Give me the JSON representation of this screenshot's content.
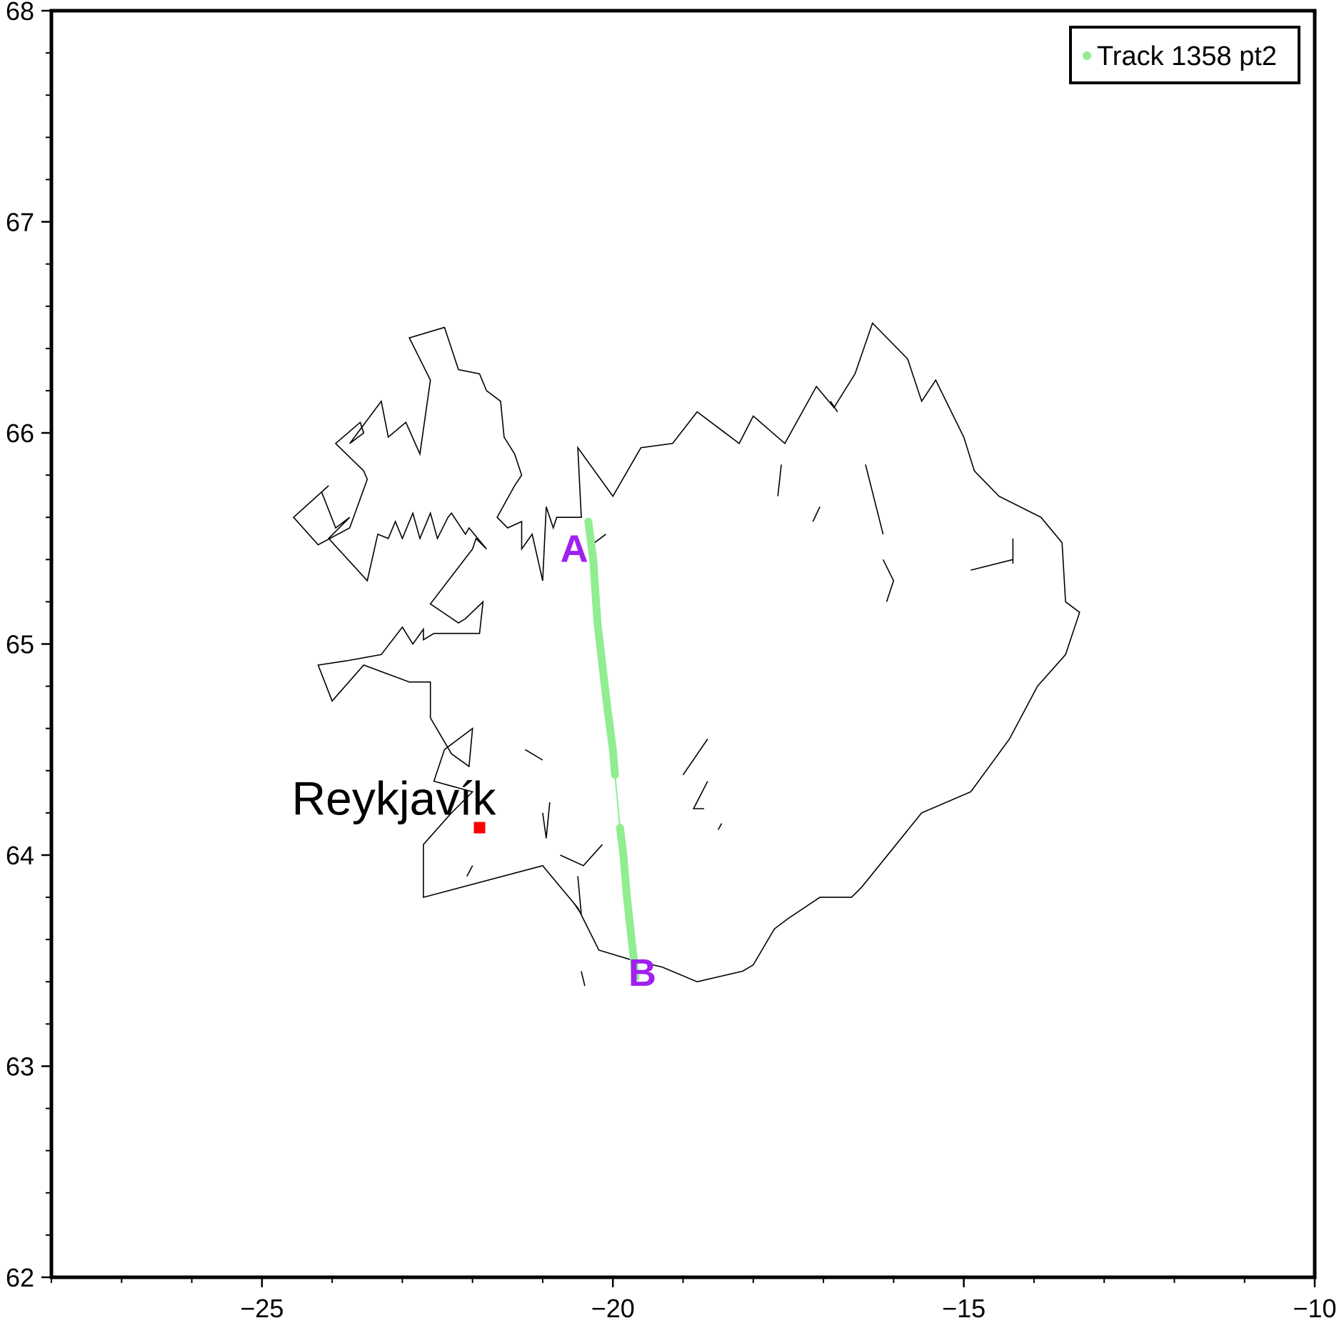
{
  "chart_data": {
    "type": "map",
    "projection": "longitude-latitude",
    "xlim": [
      -28,
      -10
    ],
    "ylim": [
      62,
      68
    ],
    "x_ticks": [
      -25,
      -20,
      -15,
      -10
    ],
    "y_ticks": [
      62,
      63,
      64,
      65,
      66,
      67,
      68
    ],
    "x_tick_labels": [
      "−25",
      "−20",
      "−15",
      "−10"
    ],
    "y_tick_labels": [
      "62",
      "63",
      "64",
      "65",
      "66",
      "67",
      "68"
    ],
    "xlabel": "",
    "ylabel": "",
    "title": "",
    "coastline_color": "#000000",
    "legend": {
      "placement": "top-right",
      "entries": [
        {
          "label": "Track 1358 pt2",
          "color": "#90ee90"
        }
      ]
    },
    "track": {
      "name": "Track 1358 pt2",
      "color": "#90ee90",
      "segments": [
        {
          "role": "data",
          "lon": [
            -20.35,
            -20.28,
            -20.22,
            -20.15,
            -20.08,
            -20.0,
            -19.97
          ],
          "lat": [
            65.58,
            65.4,
            65.1,
            64.9,
            64.7,
            64.5,
            64.38
          ]
        },
        {
          "role": "gap",
          "lon": [
            -19.97,
            -19.9
          ],
          "lat": [
            64.38,
            64.13
          ]
        },
        {
          "role": "data",
          "lon": [
            -19.9,
            -19.85,
            -19.8,
            -19.75,
            -19.7,
            -19.68
          ],
          "lat": [
            64.13,
            64.0,
            63.8,
            63.65,
            63.5,
            63.42
          ]
        }
      ],
      "start_marker": {
        "label": "A",
        "lon": -20.55,
        "lat": 65.39,
        "color": "#a020f0"
      },
      "end_marker": {
        "label": "B",
        "lon": -19.58,
        "lat": 63.38,
        "color": "#a020f0"
      }
    },
    "cities": [
      {
        "name": "Reykjavík",
        "lon": -21.9,
        "lat": 64.13,
        "marker_color": "#ff0000"
      }
    ],
    "coastline": {
      "main": [
        [
          -22.3,
          64.2
        ],
        [
          -22.0,
          64.3
        ],
        [
          -22.55,
          64.35
        ],
        [
          -22.4,
          64.5
        ],
        [
          -22.0,
          64.6
        ],
        [
          -22.05,
          64.42
        ],
        [
          -22.3,
          64.48
        ],
        [
          -22.6,
          64.65
        ],
        [
          -22.6,
          64.82
        ],
        [
          -22.9,
          64.82
        ],
        [
          -23.55,
          64.9
        ],
        [
          -24.0,
          64.73
        ],
        [
          -24.2,
          64.9
        ],
        [
          -23.8,
          64.92
        ],
        [
          -23.3,
          64.95
        ],
        [
          -23.0,
          65.08
        ],
        [
          -22.85,
          65.0
        ],
        [
          -22.7,
          65.07
        ],
        [
          -22.7,
          65.02
        ],
        [
          -22.55,
          65.05
        ],
        [
          -21.9,
          65.05
        ],
        [
          -21.85,
          65.2
        ],
        [
          -22.1,
          65.12
        ],
        [
          -22.2,
          65.1
        ],
        [
          -22.6,
          65.19
        ],
        [
          -22.0,
          65.45
        ],
        [
          -21.95,
          65.5
        ],
        [
          -21.8,
          65.45
        ],
        [
          -22.05,
          65.55
        ],
        [
          -22.1,
          65.52
        ],
        [
          -22.3,
          65.62
        ],
        [
          -22.35,
          65.6
        ],
        [
          -22.5,
          65.5
        ],
        [
          -22.6,
          65.62
        ],
        [
          -22.75,
          65.5
        ],
        [
          -22.85,
          65.62
        ],
        [
          -23.0,
          65.5
        ],
        [
          -23.1,
          65.58
        ],
        [
          -23.2,
          65.5
        ],
        [
          -23.35,
          65.52
        ],
        [
          -23.5,
          65.3
        ],
        [
          -24.05,
          65.5
        ],
        [
          -23.75,
          65.6
        ],
        [
          -23.95,
          65.55
        ],
        [
          -24.15,
          65.72
        ],
        [
          -24.05,
          65.75
        ],
        [
          -24.55,
          65.6
        ],
        [
          -24.2,
          65.47
        ],
        [
          -23.75,
          65.55
        ],
        [
          -23.5,
          65.78
        ],
        [
          -23.55,
          65.82
        ],
        [
          -23.95,
          65.95
        ],
        [
          -23.6,
          66.05
        ],
        [
          -23.55,
          66.0
        ],
        [
          -23.75,
          65.95
        ],
        [
          -23.3,
          66.15
        ],
        [
          -23.2,
          65.98
        ],
        [
          -22.95,
          66.05
        ],
        [
          -22.75,
          65.9
        ],
        [
          -22.6,
          66.25
        ],
        [
          -22.9,
          66.45
        ],
        [
          -22.4,
          66.5
        ],
        [
          -22.2,
          66.3
        ],
        [
          -21.9,
          66.28
        ],
        [
          -21.8,
          66.2
        ],
        [
          -21.6,
          66.15
        ],
        [
          -21.55,
          65.98
        ],
        [
          -21.4,
          65.9
        ],
        [
          -21.3,
          65.8
        ],
        [
          -21.4,
          65.75
        ],
        [
          -21.65,
          65.6
        ],
        [
          -21.5,
          65.55
        ],
        [
          -21.3,
          65.58
        ],
        [
          -21.3,
          65.45
        ],
        [
          -21.15,
          65.52
        ],
        [
          -21.0,
          65.3
        ],
        [
          -20.95,
          65.65
        ],
        [
          -20.85,
          65.55
        ],
        [
          -20.8,
          65.6
        ],
        [
          -20.45,
          65.6
        ],
        [
          -20.5,
          65.93
        ],
        [
          -20.0,
          65.7
        ],
        [
          -19.6,
          65.93
        ],
        [
          -19.15,
          65.95
        ],
        [
          -18.8,
          66.1
        ],
        [
          -18.2,
          65.95
        ],
        [
          -18.0,
          66.08
        ],
        [
          -17.55,
          65.95
        ],
        [
          -17.1,
          66.22
        ],
        [
          -16.85,
          66.12
        ],
        [
          -16.55,
          66.28
        ],
        [
          -16.3,
          66.52
        ],
        [
          -15.8,
          66.35
        ],
        [
          -15.6,
          66.15
        ],
        [
          -15.4,
          66.25
        ],
        [
          -15.0,
          65.98
        ],
        [
          -14.85,
          65.82
        ],
        [
          -14.5,
          65.7
        ],
        [
          -13.9,
          65.6
        ],
        [
          -13.6,
          65.48
        ],
        [
          -13.55,
          65.2
        ],
        [
          -13.35,
          65.15
        ],
        [
          -13.55,
          64.95
        ],
        [
          -13.95,
          64.8
        ],
        [
          -14.35,
          64.55
        ],
        [
          -14.9,
          64.3
        ],
        [
          -15.6,
          64.2
        ],
        [
          -16.45,
          63.85
        ],
        [
          -16.6,
          63.8
        ],
        [
          -17.05,
          63.8
        ],
        [
          -17.5,
          63.7
        ],
        [
          -17.7,
          63.65
        ],
        [
          -18.0,
          63.48
        ],
        [
          -18.15,
          63.45
        ],
        [
          -18.8,
          63.4
        ],
        [
          -19.3,
          63.47
        ],
        [
          -19.7,
          63.5
        ],
        [
          -20.2,
          63.55
        ],
        [
          -20.5,
          63.75
        ],
        [
          -21.0,
          63.95
        ],
        [
          -22.7,
          63.8
        ],
        [
          -22.7,
          64.05
        ],
        [
          -22.3,
          64.2
        ]
      ],
      "fragments": [
        [
          [
            -22.08,
            63.9
          ],
          [
            -22.0,
            63.95
          ]
        ],
        [
          [
            -20.3,
            65.47
          ],
          [
            -20.1,
            65.52
          ]
        ],
        [
          [
            -21.25,
            64.5
          ],
          [
            -21.0,
            64.45
          ]
        ],
        [
          [
            -21.0,
            64.2
          ],
          [
            -20.95,
            64.08
          ],
          [
            -20.9,
            64.25
          ]
        ],
        [
          [
            -20.75,
            64.0
          ],
          [
            -20.42,
            63.95
          ],
          [
            -20.15,
            64.05
          ]
        ],
        [
          [
            -20.5,
            63.9
          ],
          [
            -20.45,
            63.72
          ],
          [
            -20.55,
            63.77
          ]
        ],
        [
          [
            -20.45,
            63.45
          ],
          [
            -20.4,
            63.38
          ]
        ],
        [
          [
            -19.0,
            64.38
          ],
          [
            -18.65,
            64.55
          ]
        ],
        [
          [
            -18.65,
            64.35
          ],
          [
            -18.85,
            64.22
          ],
          [
            -18.7,
            64.22
          ]
        ],
        [
          [
            -18.5,
            64.12
          ],
          [
            -18.45,
            64.15
          ]
        ],
        [
          [
            -17.6,
            65.85
          ],
          [
            -17.65,
            65.7
          ]
        ],
        [
          [
            -17.05,
            65.65
          ],
          [
            -17.15,
            65.58
          ]
        ],
        [
          [
            -16.4,
            65.85
          ],
          [
            -16.15,
            65.52
          ]
        ],
        [
          [
            -16.15,
            65.4
          ],
          [
            -16.0,
            65.3
          ],
          [
            -16.1,
            65.2
          ]
        ],
        [
          [
            -14.9,
            65.35
          ],
          [
            -14.3,
            65.4
          ]
        ],
        [
          [
            -14.3,
            65.5
          ],
          [
            -14.3,
            65.38
          ]
        ],
        [
          [
            -16.9,
            66.15
          ],
          [
            -16.8,
            66.1
          ]
        ]
      ]
    }
  }
}
